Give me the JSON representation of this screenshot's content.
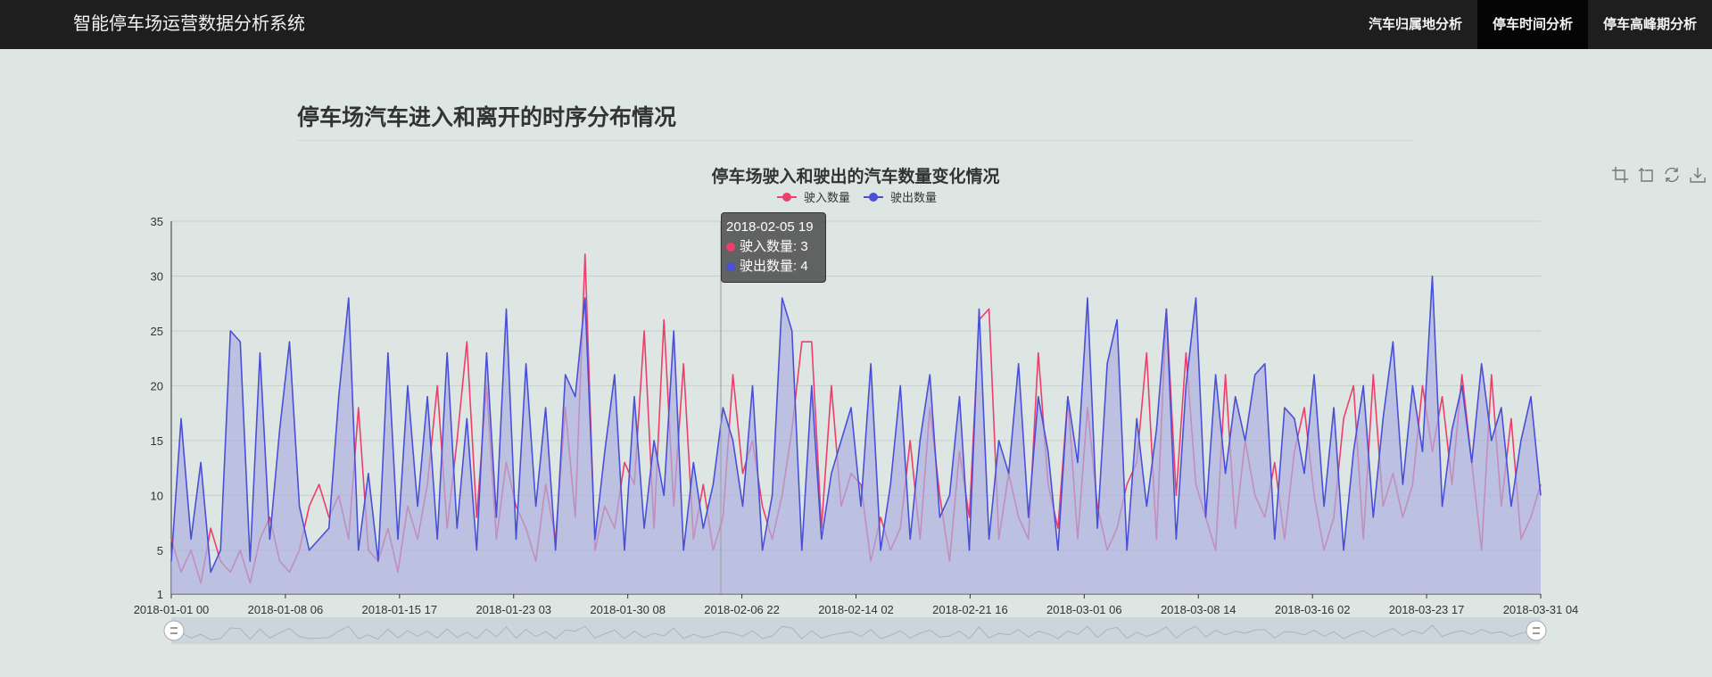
{
  "app": {
    "title": "智能停车场运营数据分析系统"
  },
  "nav": {
    "items": [
      {
        "label": "汽车归属地分析",
        "active": false
      },
      {
        "label": "停车时间分析",
        "active": true
      },
      {
        "label": "停车高峰期分析",
        "active": false
      }
    ]
  },
  "page": {
    "title": "停车场汽车进入和离开的时序分布情况"
  },
  "toolbox": {
    "icons": [
      "zoom-select-icon",
      "zoom-reset-icon",
      "restore-icon",
      "save-image-icon"
    ]
  },
  "colors": {
    "in": "#ee3e6c",
    "out": "#4a4fd8",
    "area": "#aeb0e0",
    "navbar": "#1e1e1e",
    "background": "#dde6e3"
  },
  "tooltip": {
    "header": "2018-02-05 19",
    "in_label": "驶入数量: 3",
    "out_label": "驶出数量: 4"
  },
  "chart_data": {
    "type": "line",
    "title": "停车场驶入和驶出的汽车数量变化情况",
    "xlabel": "",
    "ylabel": "",
    "x_tick_labels": [
      "2018-01-01 00",
      "2018-01-08 06",
      "2018-01-15 17",
      "2018-01-23 03",
      "2018-01-30 08",
      "2018-02-06 22",
      "2018-02-14 02",
      "2018-02-21 16",
      "2018-03-01 06",
      "2018-03-08 14",
      "2018-03-16 02",
      "2018-03-23 17",
      "2018-03-31 04"
    ],
    "y_ticks": [
      1,
      5,
      10,
      15,
      20,
      25,
      30,
      35
    ],
    "ylim": [
      1,
      35
    ],
    "x_range": [
      "2018-01-01 00",
      "2018-03-31 04"
    ],
    "legend": {
      "position": "top-center",
      "entries": [
        "驶入数量",
        "驶出数量"
      ]
    },
    "grid": true,
    "hover_point": {
      "x": "2018-02-05 19",
      "驶入数量": 3,
      "驶出数量": 4
    },
    "series": [
      {
        "name": "驶入数量",
        "color": "#ee3e6c",
        "sampled_every_hours": 12,
        "values": [
          6,
          3,
          5,
          2,
          7,
          4,
          3,
          5,
          2,
          6,
          8,
          4,
          3,
          5,
          9,
          11,
          8,
          10,
          6,
          18,
          5,
          4,
          7,
          3,
          9,
          6,
          11,
          20,
          7,
          15,
          24,
          8,
          20,
          6,
          13,
          9,
          7,
          4,
          11,
          6,
          18,
          8,
          32,
          5,
          9,
          7,
          13,
          11,
          25,
          7,
          26,
          9,
          22,
          6,
          11,
          5,
          8,
          21,
          12,
          15,
          9,
          6,
          10,
          16,
          24,
          24,
          7,
          20,
          9,
          12,
          11,
          4,
          8,
          5,
          7,
          15,
          6,
          18,
          10,
          4,
          14,
          8,
          26,
          27,
          6,
          12,
          8,
          6,
          23,
          11,
          7,
          19,
          6,
          18,
          9,
          5,
          7,
          11,
          13,
          23,
          6,
          27,
          10,
          23,
          11,
          8,
          5,
          21,
          7,
          15,
          10,
          8,
          13,
          6,
          14,
          18,
          10,
          5,
          8,
          17,
          20,
          6,
          21,
          9,
          12,
          8,
          11,
          20,
          14,
          19,
          11,
          21,
          13,
          5,
          21,
          9,
          17,
          6,
          8,
          11
        ]
      },
      {
        "name": "驶出数量",
        "color": "#4a4fd8",
        "sampled_every_hours": 12,
        "values": [
          4,
          17,
          6,
          13,
          3,
          5,
          25,
          24,
          4,
          23,
          6,
          16,
          24,
          9,
          5,
          6,
          7,
          19,
          28,
          5,
          12,
          4,
          23,
          6,
          20,
          9,
          19,
          6,
          23,
          7,
          17,
          5,
          23,
          8,
          27,
          6,
          22,
          9,
          18,
          5,
          21,
          19,
          28,
          6,
          14,
          21,
          5,
          19,
          7,
          15,
          10,
          25,
          5,
          13,
          7,
          11,
          18,
          15,
          9,
          20,
          5,
          10,
          28,
          25,
          5,
          20,
          6,
          12,
          15,
          18,
          9,
          22,
          5,
          11,
          20,
          6,
          15,
          21,
          8,
          10,
          19,
          5,
          27,
          6,
          15,
          12,
          22,
          8,
          19,
          14,
          5,
          19,
          13,
          28,
          7,
          22,
          26,
          5,
          17,
          9,
          16,
          27,
          6,
          20,
          28,
          8,
          21,
          12,
          19,
          15,
          21,
          22,
          6,
          18,
          17,
          12,
          21,
          9,
          18,
          5,
          14,
          20,
          8,
          17,
          24,
          11,
          20,
          14,
          30,
          9,
          16,
          20,
          13,
          22,
          15,
          18,
          9,
          15,
          19,
          10
        ]
      }
    ]
  }
}
